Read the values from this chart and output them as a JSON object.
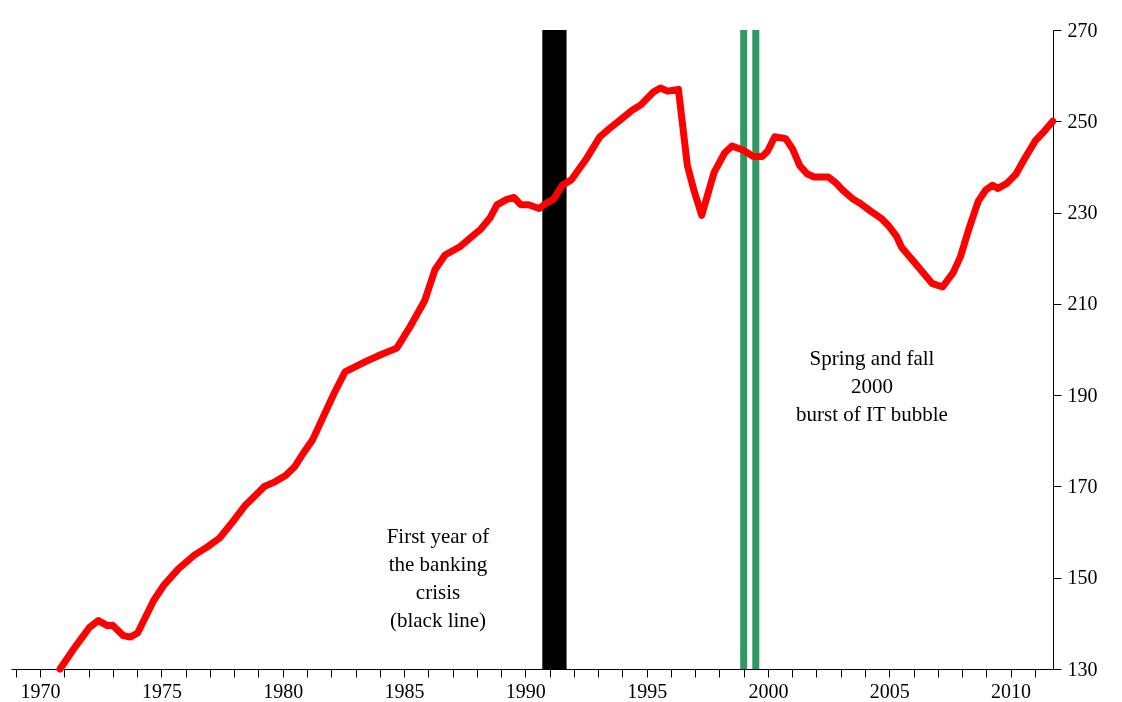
{
  "chart_data": {
    "type": "line",
    "x": [
      1970.82,
      1971.44,
      1972.03,
      1972.4,
      1972.77,
      1972.99,
      1973.43,
      1973.72,
      1974.02,
      1974.68,
      1975.12,
      1975.71,
      1976.37,
      1976.88,
      1977.4,
      1977.99,
      1978.43,
      1978.87,
      1979.24,
      1979.68,
      1980.12,
      1980.49,
      1980.86,
      1981.23,
      1982.11,
      1982.57,
      1983.39,
      1984.01,
      1984.7,
      1985.25,
      1985.86,
      1986.27,
      1986.69,
      1987.3,
      1987.72,
      1988.13,
      1988.54,
      1988.83,
      1989.24,
      1989.53,
      1989.82,
      1990.13,
      1990.57,
      1990.87,
      1991.16,
      1991.53,
      1991.9,
      1992.48,
      1993.07,
      1993.51,
      1993.96,
      1994.4,
      1994.76,
      1995.28,
      1995.57,
      1995.87,
      1996.31,
      1996.68,
      1996.97,
      1997.27,
      1997.78,
      1998.22,
      1998.52,
      1998.96,
      1999.4,
      1999.77,
      1999.99,
      2000.28,
      2000.73,
      2001.02,
      2001.31,
      2001.61,
      2001.9,
      2002.49,
      2002.78,
      2003.08,
      2003.52,
      2003.81,
      2004.26,
      2004.7,
      2004.99,
      2005.29,
      2005.51,
      2006.02,
      2006.32,
      2006.76,
      2007.2,
      2007.64,
      2007.94,
      2008.3,
      2008.67,
      2008.97,
      2009.26,
      2009.48,
      2009.85,
      2010.22,
      2010.59,
      2011.03,
      2011.39,
      2011.74
    ],
    "series": [
      {
        "color": "#ff0000",
        "values": [
          130,
          134.8,
          139.1,
          140.6,
          139.5,
          139.6,
          137.3,
          137,
          137.9,
          145,
          148.5,
          152,
          155,
          156.7,
          158.7,
          162.6,
          165.7,
          168,
          170,
          171,
          172.4,
          174.3,
          177.4,
          180.2,
          190.3,
          195.1,
          197.3,
          198.8,
          200.3,
          205,
          210.8,
          217.4,
          220.7,
          222.5,
          224.4,
          226.2,
          228.8,
          231.7,
          232.9,
          233.3,
          231.7,
          231.7,
          230.9,
          232.1,
          232.9,
          236,
          237.2,
          241.5,
          246.6,
          248.6,
          250.5,
          252.4,
          253.6,
          256.4,
          257.3,
          256.6,
          257,
          240.3,
          234.5,
          229.4,
          238.8,
          243.1,
          244.6,
          243.7,
          242.3,
          242.3,
          243.5,
          246.6,
          246.2,
          243.9,
          240.3,
          238.5,
          237.8,
          237.8,
          236.6,
          234.9,
          232.9,
          232,
          230.2,
          228.6,
          227,
          224.9,
          222.4,
          219.2,
          217.3,
          214.5,
          213.7,
          216.9,
          220.4,
          226.7,
          232.5,
          234.9,
          236,
          235.3,
          236.4,
          238.4,
          241.9,
          245.8,
          247.8,
          250
        ]
      }
    ],
    "xlim": [
      1968.8,
      2011.75
    ],
    "xticks": [
      {
        "value": 1969,
        "label": null
      },
      1970,
      {
        "value": 1971,
        "label": null
      },
      {
        "value": 1972,
        "label": null
      },
      {
        "value": 1973,
        "label": null
      },
      {
        "value": 1974,
        "label": null
      },
      1975,
      {
        "value": 1976,
        "label": null
      },
      {
        "value": 1977,
        "label": null
      },
      {
        "value": 1978,
        "label": null
      },
      {
        "value": 1979,
        "label": null
      },
      1980,
      {
        "value": 1981,
        "label": null
      },
      {
        "value": 1982,
        "label": null
      },
      {
        "value": 1983,
        "label": null
      },
      {
        "value": 1984,
        "label": null
      },
      1985,
      {
        "value": 1986,
        "label": null
      },
      {
        "value": 1987,
        "label": null
      },
      {
        "value": 1988,
        "label": null
      },
      {
        "value": 1989,
        "label": null
      },
      1990,
      {
        "value": 1991,
        "label": null
      },
      {
        "value": 1992,
        "label": null
      },
      {
        "value": 1993,
        "label": null
      },
      {
        "value": 1994,
        "label": null
      },
      1995,
      {
        "value": 1996,
        "label": null
      },
      {
        "value": 1997,
        "label": null
      },
      {
        "value": 1998,
        "label": null
      },
      {
        "value": 1999,
        "label": null
      },
      2000,
      {
        "value": 2001,
        "label": null
      },
      {
        "value": 2002,
        "label": null
      },
      {
        "value": 2003,
        "label": null
      },
      {
        "value": 2004,
        "label": null
      },
      2005,
      {
        "value": 2006,
        "label": null
      },
      {
        "value": 2007,
        "label": null
      },
      {
        "value": 2008,
        "label": null
      },
      {
        "value": 2009,
        "label": null
      },
      2010,
      {
        "value": 2011,
        "label": null
      }
    ],
    "ylim": [
      130,
      270
    ],
    "yticks": [
      130,
      150,
      170,
      190,
      210,
      230,
      250,
      270
    ],
    "grid": false,
    "marker": "none",
    "line_style": "solid",
    "bands": [
      {
        "axis": "x",
        "from": 1990.7,
        "to": 1991.7,
        "color": "#000000"
      }
    ],
    "ref_lines": [
      {
        "axis": "x",
        "value": 1999.0,
        "color": "#2e9963"
      },
      {
        "axis": "x",
        "value": 1999.5,
        "color": "#2e9963"
      }
    ],
    "annotations": [
      "First year of\nthe banking\ncrisis\n (black line)",
      "Spring and fall\n2000\nburst of IT bubble"
    ]
  }
}
